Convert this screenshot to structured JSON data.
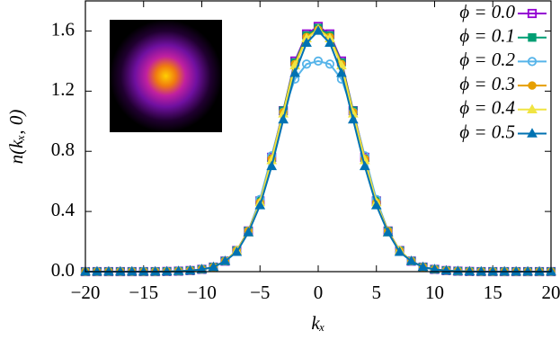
{
  "chart_data": {
    "type": "line",
    "xlabel": "kₓ",
    "ylabel": "n(kₓ, 0)",
    "x": [
      -20,
      -19,
      -18,
      -17,
      -16,
      -15,
      -14,
      -13,
      -12,
      -11,
      -10,
      -9,
      -8,
      -7,
      -6,
      -5,
      -4,
      -3,
      -2,
      -1,
      0,
      1,
      2,
      3,
      4,
      5,
      6,
      7,
      8,
      9,
      10,
      11,
      12,
      13,
      14,
      15,
      16,
      17,
      18,
      19,
      20
    ],
    "xlim": [
      -20,
      20
    ],
    "xticks": [
      {
        "value": -20,
        "label": "−20"
      },
      {
        "value": -15,
        "label": "−15"
      },
      {
        "value": -10,
        "label": "−10"
      },
      {
        "value": -5,
        "label": "−5"
      },
      0,
      5,
      10,
      15,
      20
    ],
    "ylim": [
      0,
      1.8
    ],
    "yticks": [
      {
        "value": 0,
        "label": "0.0"
      },
      0.4,
      0.8,
      1.2,
      1.6
    ],
    "legend": "top-right",
    "series": [
      {
        "name": "ϕ = 0.0",
        "color": "#9400d3",
        "marker": "open-square",
        "values": [
          0,
          0,
          0,
          0,
          0,
          0,
          0,
          0.001,
          0.003,
          0.007,
          0.015,
          0.03,
          0.07,
          0.14,
          0.27,
          0.47,
          0.76,
          1.07,
          1.4,
          1.58,
          1.63,
          1.58,
          1.4,
          1.07,
          0.76,
          0.47,
          0.27,
          0.14,
          0.07,
          0.03,
          0.015,
          0.007,
          0.003,
          0.001,
          0,
          0,
          0,
          0,
          0,
          0,
          0
        ]
      },
      {
        "name": "ϕ = 0.1",
        "color": "#009e73",
        "marker": "square",
        "values": [
          0,
          0,
          0,
          0,
          0,
          0,
          0,
          0.001,
          0.003,
          0.007,
          0.015,
          0.03,
          0.07,
          0.14,
          0.27,
          0.47,
          0.75,
          1.07,
          1.39,
          1.57,
          1.62,
          1.57,
          1.39,
          1.07,
          0.75,
          0.47,
          0.27,
          0.14,
          0.07,
          0.03,
          0.015,
          0.007,
          0.003,
          0.001,
          0,
          0,
          0,
          0,
          0,
          0,
          0
        ]
      },
      {
        "name": "ϕ = 0.2",
        "color": "#56b4e9",
        "marker": "open-circle",
        "values": [
          0,
          0,
          0,
          0,
          0,
          0,
          0,
          0.001,
          0.003,
          0.007,
          0.015,
          0.03,
          0.07,
          0.14,
          0.27,
          0.48,
          0.77,
          1.06,
          1.28,
          1.38,
          1.4,
          1.38,
          1.28,
          1.06,
          0.77,
          0.48,
          0.27,
          0.14,
          0.07,
          0.03,
          0.015,
          0.007,
          0.003,
          0.001,
          0,
          0,
          0,
          0,
          0,
          0,
          0
        ]
      },
      {
        "name": "ϕ = 0.3",
        "color": "#e69f00",
        "marker": "circle",
        "values": [
          0,
          0,
          0,
          0,
          0,
          0,
          0,
          0.001,
          0.003,
          0.007,
          0.015,
          0.03,
          0.07,
          0.14,
          0.27,
          0.46,
          0.75,
          1.06,
          1.38,
          1.56,
          1.61,
          1.56,
          1.38,
          1.06,
          0.75,
          0.46,
          0.27,
          0.14,
          0.07,
          0.03,
          0.015,
          0.007,
          0.003,
          0.001,
          0,
          0,
          0,
          0,
          0,
          0,
          0
        ]
      },
      {
        "name": "ϕ = 0.4",
        "color": "#f0e442",
        "marker": "triangle",
        "values": [
          0,
          0,
          0,
          0,
          0,
          0,
          0,
          0.001,
          0.003,
          0.007,
          0.015,
          0.03,
          0.07,
          0.14,
          0.26,
          0.46,
          0.74,
          1.05,
          1.37,
          1.55,
          1.61,
          1.55,
          1.37,
          1.05,
          0.74,
          0.46,
          0.26,
          0.14,
          0.07,
          0.03,
          0.015,
          0.007,
          0.003,
          0.001,
          0,
          0,
          0,
          0,
          0,
          0,
          0
        ]
      },
      {
        "name": "ϕ = 0.5",
        "color": "#0072b2",
        "marker": "triangle",
        "values": [
          0,
          0,
          0,
          0,
          0,
          0,
          0,
          0.001,
          0.003,
          0.007,
          0.015,
          0.03,
          0.07,
          0.13,
          0.26,
          0.44,
          0.7,
          1.01,
          1.32,
          1.52,
          1.6,
          1.52,
          1.32,
          1.01,
          0.7,
          0.44,
          0.26,
          0.13,
          0.07,
          0.03,
          0.015,
          0.007,
          0.003,
          0.001,
          0,
          0,
          0,
          0,
          0,
          0,
          0
        ]
      }
    ]
  }
}
